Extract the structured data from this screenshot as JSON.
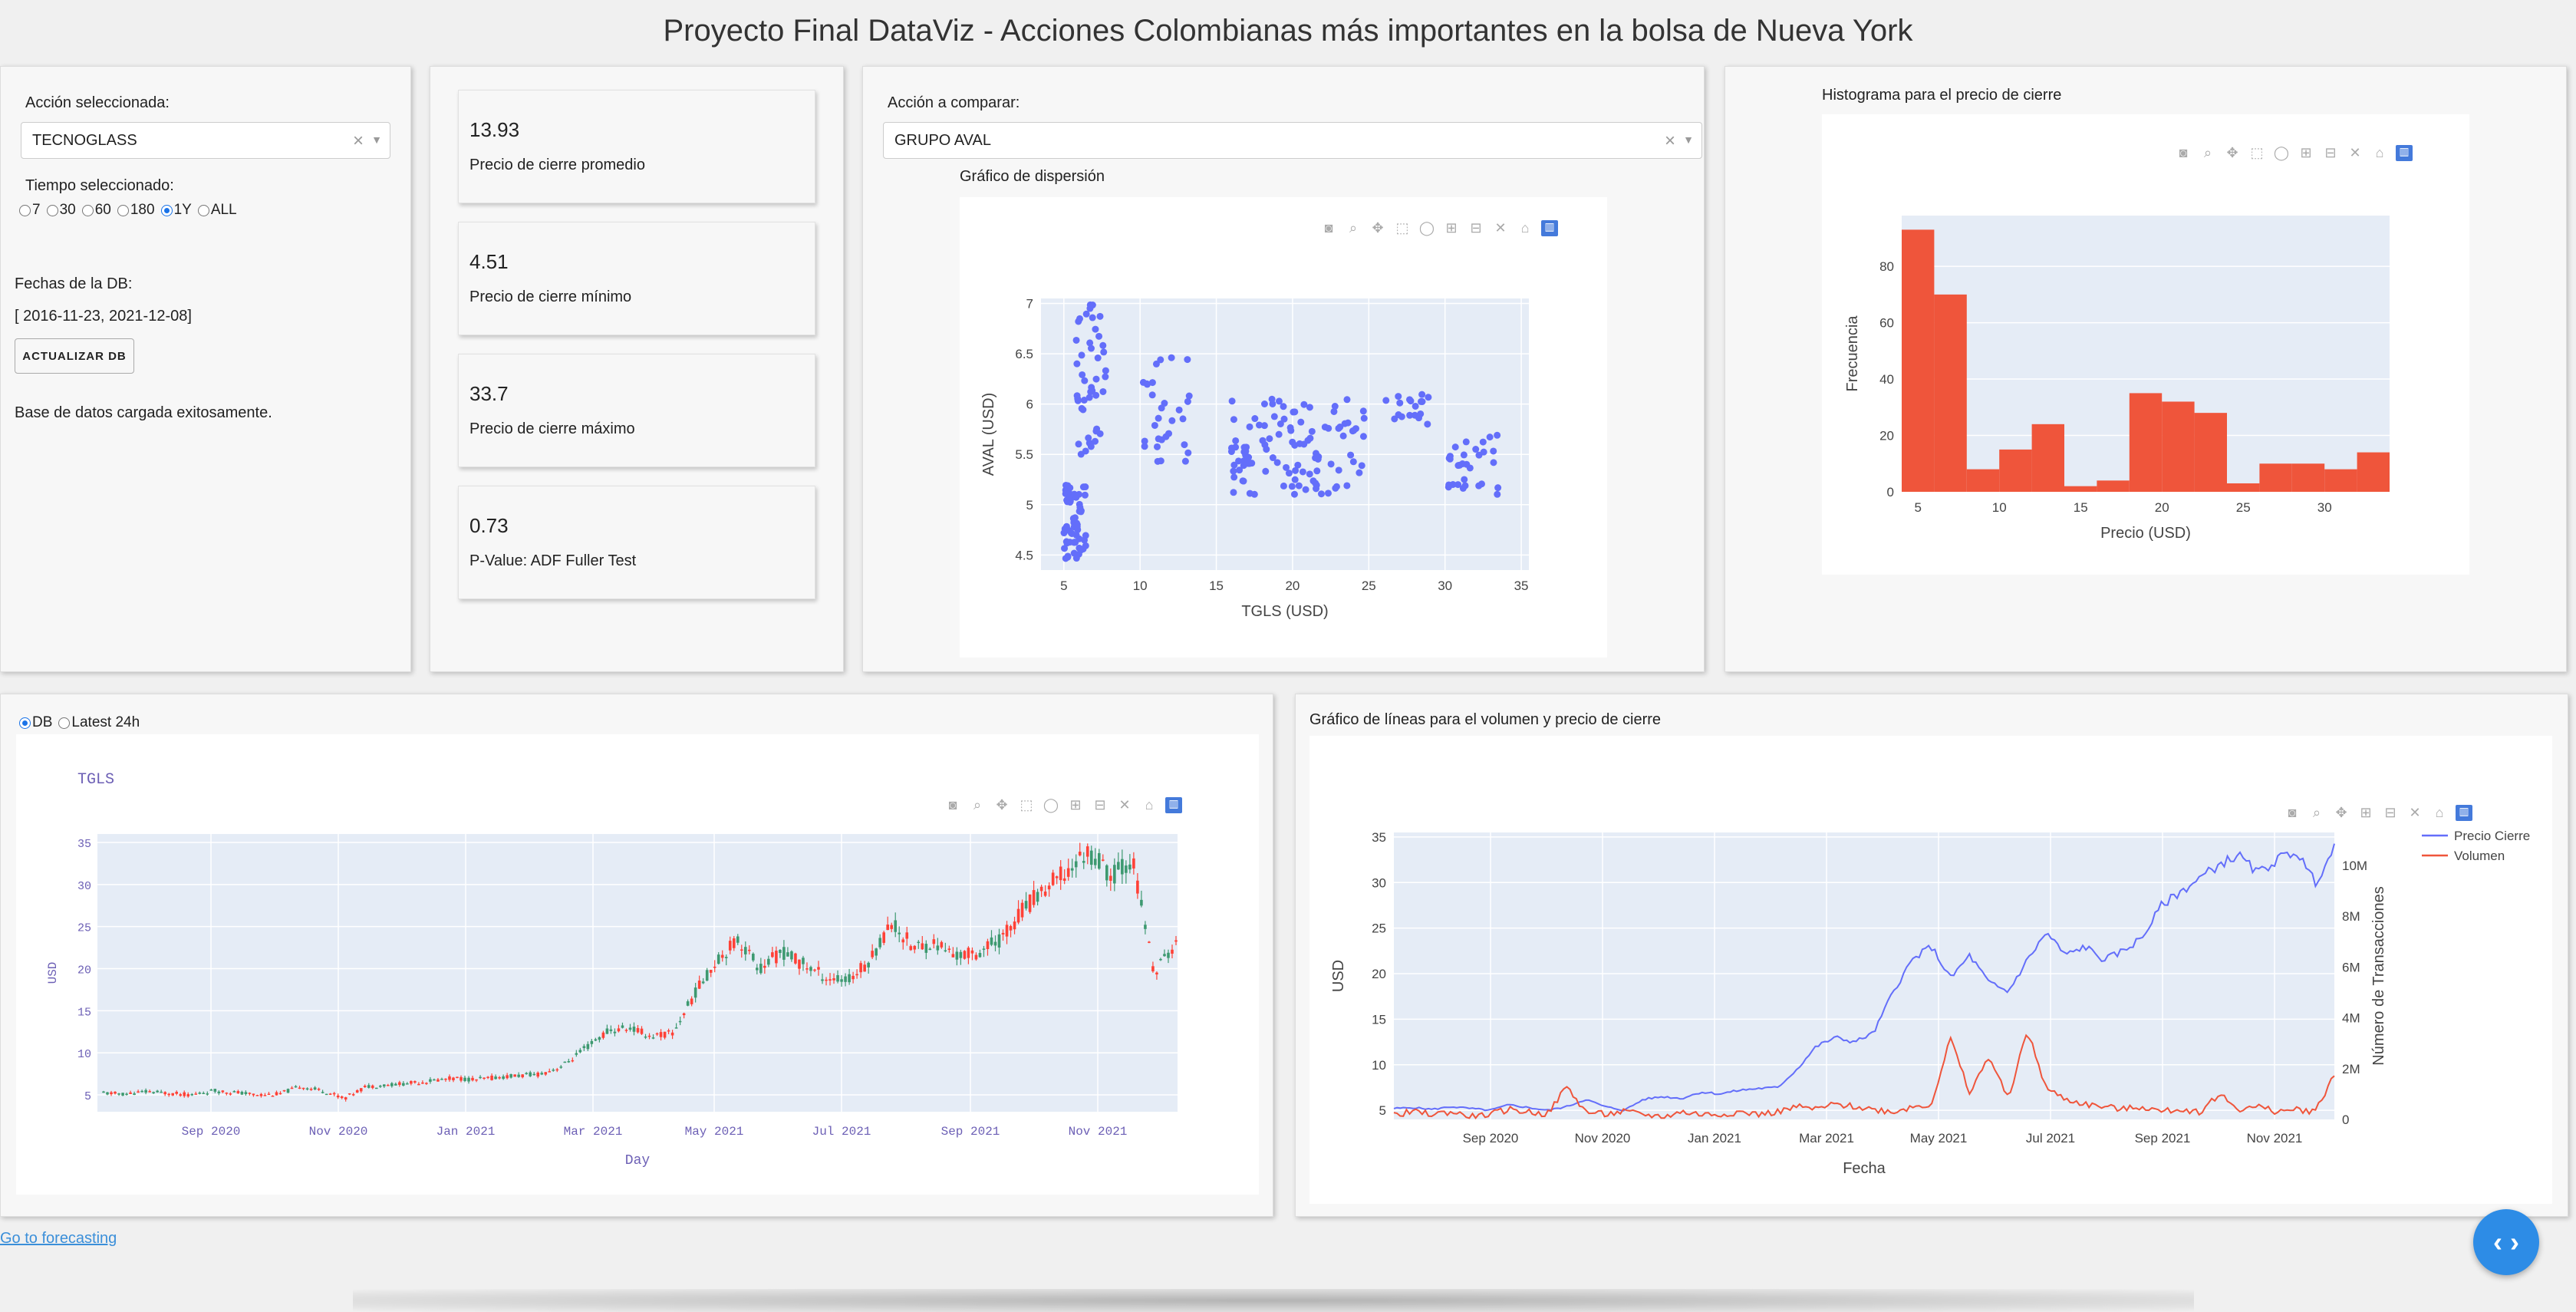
{
  "title": "Proyecto Final DataViz - Acciones Colombianas más importantes en la bolsa de Nueva York",
  "controls": {
    "stock_label": "Acción seleccionada:",
    "stock_value": "TECNOGLASS",
    "time_label": "Tiempo seleccionado:",
    "time_options": [
      "7",
      "30",
      "60",
      "180",
      "1Y",
      "ALL"
    ],
    "time_selected": "1Y",
    "db_dates_label": "Fechas de la DB:",
    "db_dates_value": "[ 2016-11-23, 2021-12-08]",
    "update_button": "ACTUALIZAR DB",
    "status": "Base de datos cargada exitosamente."
  },
  "stats": [
    {
      "value": "13.93",
      "label": "Precio de cierre promedio"
    },
    {
      "value": "4.51",
      "label": "Precio de cierre mínimo"
    },
    {
      "value": "33.7",
      "label": "Precio de cierre máximo"
    },
    {
      "value": "0.73",
      "label": "P-Value: ADF Fuller Test"
    }
  ],
  "compare": {
    "label": "Acción a comparar:",
    "value": "GRUPO AVAL",
    "scatter_title": "Gráfico de dispersión"
  },
  "histogram": {
    "title": "Histograma para el precio de cierre"
  },
  "source_radio": {
    "options": [
      "DB",
      "Latest 24h"
    ],
    "selected": "DB"
  },
  "lines": {
    "title": "Gráfico de líneas para el volumen y precio de cierre"
  },
  "footer": {
    "link": "Go to forecasting"
  },
  "colors": {
    "accent": "#1a73e8",
    "scatter": "#636efa",
    "hist": "#ef553b",
    "plot_bg": "#e5ecf6",
    "up": "#3d9970",
    "down": "#ff4136"
  },
  "chart_data": [
    {
      "type": "scatter",
      "xlabel": "TGLS (USD)",
      "ylabel": "AVAL (USD)",
      "xticks": [
        "5",
        "10",
        "15",
        "20",
        "25",
        "30",
        "35"
      ],
      "yticks": [
        "4.5",
        "5",
        "5.5",
        "6",
        "6.5",
        "7"
      ],
      "xlim": [
        3.5,
        35.5
      ],
      "ylim": [
        4.35,
        7.05
      ],
      "clusters": [
        {
          "x_range": [
            5,
            6.5
          ],
          "y_range": [
            4.45,
            5.2
          ],
          "n": 60
        },
        {
          "x_range": [
            5.8,
            7.8
          ],
          "y_range": [
            5.5,
            7.0
          ],
          "n": 45
        },
        {
          "x_range": [
            10,
            13.5
          ],
          "y_range": [
            5.4,
            6.5
          ],
          "n": 30
        },
        {
          "x_range": [
            16,
            25
          ],
          "y_range": [
            5.1,
            6.05
          ],
          "n": 110
        },
        {
          "x_range": [
            26,
            29
          ],
          "y_range": [
            5.8,
            6.1
          ],
          "n": 18
        },
        {
          "x_range": [
            30,
            33.5
          ],
          "y_range": [
            5.1,
            5.7
          ],
          "n": 30
        }
      ]
    },
    {
      "type": "bar",
      "xlabel": "Precio (USD)",
      "ylabel": "Frecuencia",
      "xticks": [
        "5",
        "10",
        "15",
        "20",
        "25",
        "30"
      ],
      "yticks": [
        "0",
        "20",
        "40",
        "60",
        "80"
      ],
      "bin_start": 4.0,
      "bin_width": 2.0,
      "values": [
        93,
        70,
        8,
        15,
        24,
        2,
        4,
        35,
        32,
        28,
        3,
        10,
        10,
        8,
        14
      ],
      "ylim": [
        0,
        98
      ]
    },
    {
      "type": "candlestick",
      "title": "TGLS",
      "xlabel": "Day",
      "ylabel": "USD",
      "xticks": [
        "Sep 2020",
        "Nov 2020",
        "Jan 2021",
        "Mar 2021",
        "May 2021",
        "Jul 2021",
        "Sep 2021",
        "Nov 2021"
      ],
      "yticks": [
        "5",
        "10",
        "15",
        "20",
        "25",
        "30",
        "35"
      ],
      "ylim": [
        3,
        36
      ],
      "close_path": [
        5.2,
        5.1,
        5.4,
        5.2,
        5.0,
        5.5,
        5.3,
        5.0,
        5.1,
        6.0,
        5.5,
        4.6,
        6.0,
        6.2,
        6.4,
        6.7,
        7.0,
        6.8,
        7.1,
        7.3,
        7.5,
        8.5,
        10.5,
        12.5,
        13.0,
        12.0,
        12.3,
        17.0,
        21.0,
        23.5,
        20.0,
        22.0,
        20.5,
        19.0,
        18.5,
        21.0,
        25.5,
        22.5,
        23.0,
        21.5,
        22.0,
        23.5,
        27.0,
        29.5,
        31.5,
        34.0,
        31.0,
        33.0,
        19.5,
        23.0
      ]
    },
    {
      "type": "line",
      "xlabel": "Fecha",
      "ylabel": "USD",
      "y2label": "Número de Transacciones",
      "xticks": [
        "Sep 2020",
        "Nov 2020",
        "Jan 2021",
        "Mar 2021",
        "May 2021",
        "Jul 2021",
        "Sep 2021",
        "Nov 2021"
      ],
      "yticks": [
        "5",
        "10",
        "15",
        "20",
        "25",
        "30",
        "35"
      ],
      "y2ticks": [
        "0",
        "2M",
        "4M",
        "6M",
        "8M",
        "10M"
      ],
      "ylim": [
        4,
        35.5
      ],
      "y2lim": [
        0,
        11.3
      ],
      "series": [
        {
          "name": "Precio Cierre",
          "color": "#636efa",
          "values": [
            5.2,
            5.3,
            5.1,
            5.4,
            5.2,
            5.0,
            5.6,
            5.3,
            5.0,
            5.4,
            6.2,
            5.4,
            5.0,
            6.2,
            6.5,
            6.3,
            7.0,
            6.8,
            7.2,
            7.4,
            7.5,
            9.5,
            12.0,
            13.0,
            12.5,
            13.5,
            18.0,
            21.5,
            23.0,
            19.5,
            22.0,
            19.0,
            18.0,
            21.5,
            24.5,
            22.0,
            23.0,
            21.5,
            22.5,
            24.0,
            27.5,
            29.0,
            30.5,
            32.0,
            33.0,
            31.0,
            32.5,
            33.5,
            30.0,
            33.7
          ]
        },
        {
          "name": "Volumen",
          "color": "#ef553b",
          "values": [
            0.2,
            0.3,
            0.2,
            0.3,
            0.1,
            0.2,
            0.4,
            0.3,
            0.2,
            1.3,
            0.3,
            0.2,
            0.3,
            0.2,
            0.1,
            0.3,
            0.2,
            0.2,
            0.3,
            0.2,
            0.3,
            0.5,
            0.4,
            0.6,
            0.5,
            0.4,
            0.3,
            0.5,
            0.6,
            3.2,
            1.0,
            2.5,
            0.8,
            3.5,
            1.2,
            0.8,
            0.6,
            0.5,
            0.4,
            0.5,
            0.3,
            0.4,
            0.3,
            1.0,
            0.4,
            0.5,
            0.3,
            0.4,
            0.3,
            1.8
          ]
        }
      ]
    }
  ]
}
